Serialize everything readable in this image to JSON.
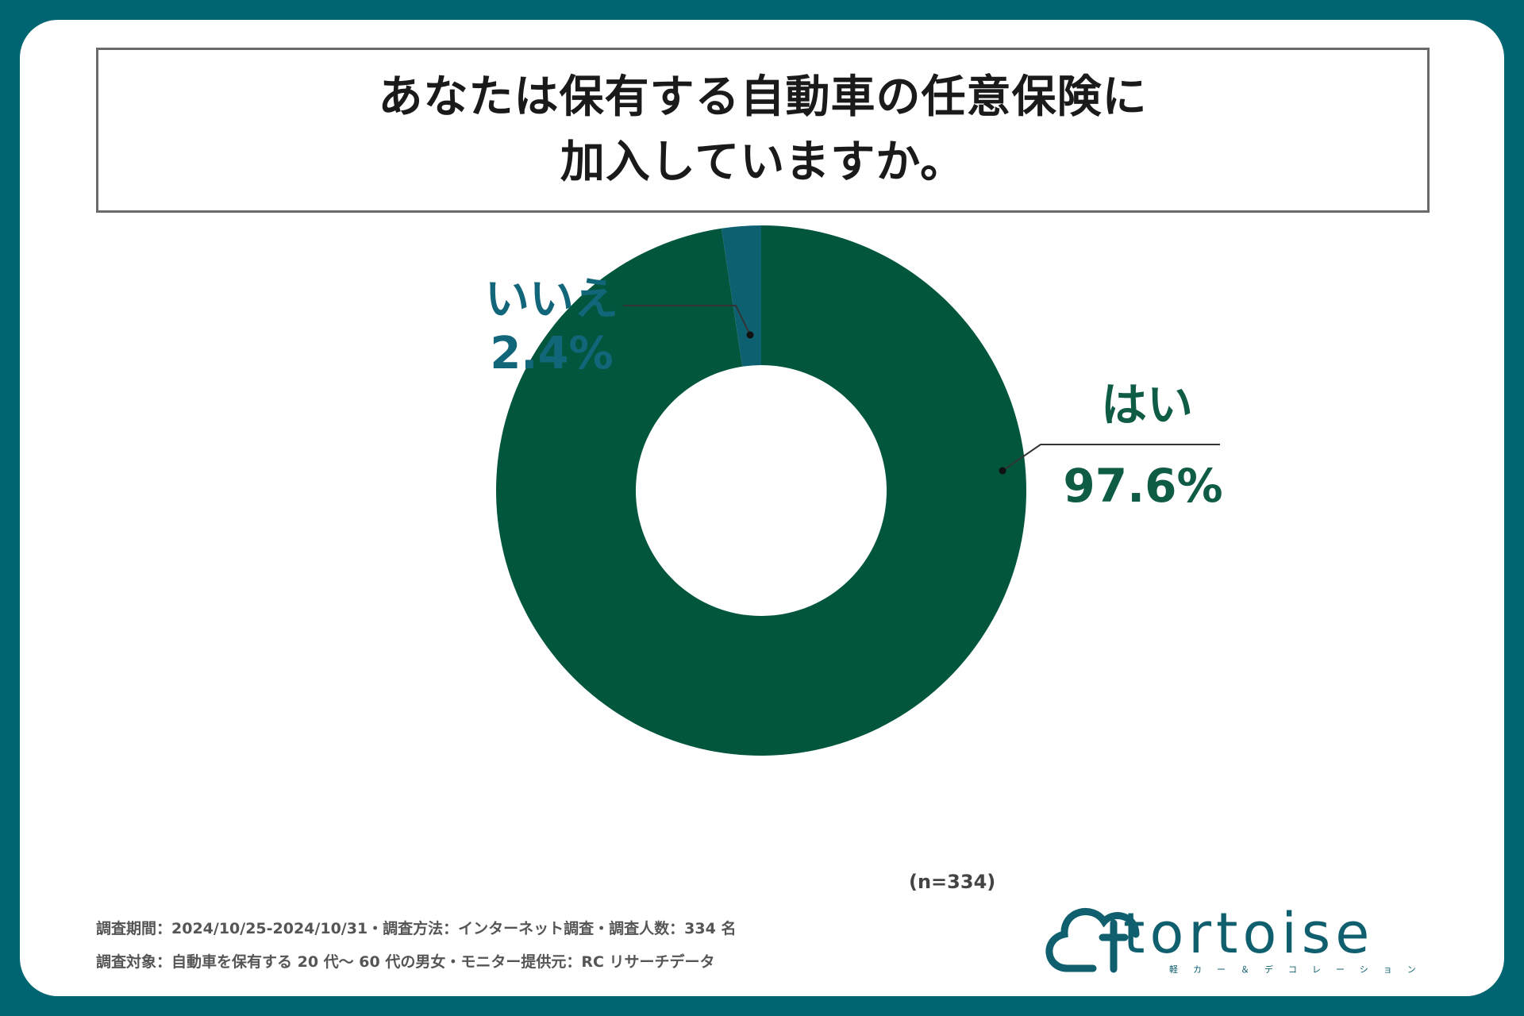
{
  "title_lines": [
    "あなたは保有する自動車の任意保険に",
    "加入していますか。"
  ],
  "chart_data": {
    "type": "pie",
    "donut": true,
    "title": "あなたは保有する自動車の任意保険に加入していますか。",
    "categories": [
      "はい",
      "いいえ"
    ],
    "values": [
      97.6,
      2.4
    ],
    "value_labels": [
      "97.6%",
      "2.4%"
    ],
    "colors": [
      "#02563d",
      "#0d6070"
    ],
    "start": "top",
    "direction": "clockwise",
    "n_label": "(n=334)"
  },
  "labels": {
    "yes_name": "はい",
    "yes_pct": "97.6%",
    "no_name": "いいえ",
    "no_pct": "2.4%"
  },
  "footnotes": [
    "調査期間：2024/10/25-2024/10/31・調査方法：インターネット調査・調査人数：334 名",
    "調査対象：自動車を保有する 20 代〜 60 代の男女・モニター提供元：RC リサーチデータ"
  ],
  "logo": {
    "word": "tortoise",
    "subtitle": "軽カー＆デコレーション"
  }
}
